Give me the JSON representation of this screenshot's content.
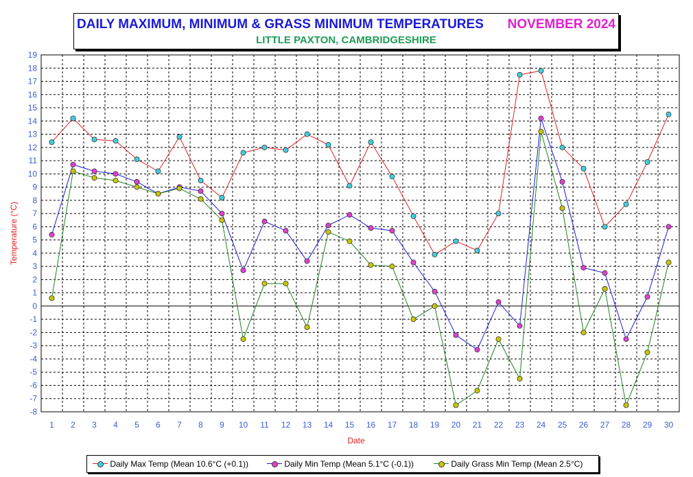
{
  "header": {
    "title": "DAILY MAXIMUM, MINIMUM & GRASS MINIMUM TEMPERATURES",
    "month": "NOVEMBER 2024",
    "subtitle": "LITTLE PAXTON, CAMBRIDGESHIRE"
  },
  "colors": {
    "title": "#1a1ad6",
    "month": "#e020d0",
    "subtitle": "#1f9d57",
    "tick_label": "#3b5bdb",
    "axis_label": "#e02020",
    "grid": "#000000"
  },
  "chart_data": {
    "type": "line",
    "title": "DAILY MAXIMUM, MINIMUM & GRASS MINIMUM TEMPERATURES",
    "xlabel": "Date",
    "ylabel": "Temperature (°C)",
    "ylim": [
      -8,
      19
    ],
    "grid": true,
    "legend_position": "bottom",
    "x": [
      1,
      2,
      3,
      4,
      5,
      6,
      7,
      8,
      9,
      10,
      11,
      12,
      13,
      14,
      15,
      16,
      17,
      18,
      19,
      20,
      21,
      22,
      23,
      24,
      25,
      26,
      27,
      28,
      29,
      30
    ],
    "y_ticks": [
      -8,
      -7,
      -6,
      -5,
      -4,
      -3,
      -2,
      -1,
      0,
      1,
      2,
      3,
      4,
      5,
      6,
      7,
      8,
      9,
      10,
      11,
      12,
      13,
      14,
      15,
      16,
      17,
      18,
      19
    ],
    "series": [
      {
        "name": "Daily Max Temp (Mean 10.6°C (+0.1))",
        "line_color": "#e02020",
        "marker_color": "#40d0e0",
        "values": [
          12.4,
          14.2,
          12.6,
          12.5,
          11.1,
          10.2,
          12.8,
          9.5,
          8.2,
          11.6,
          12.0,
          11.8,
          13.0,
          12.2,
          9.1,
          12.4,
          9.8,
          6.8,
          3.9,
          4.9,
          4.2,
          7.0,
          17.5,
          17.8,
          12.0,
          10.4,
          6.0,
          7.7,
          10.9,
          14.5
        ]
      },
      {
        "name": "Daily Min Temp (Mean 5.1°C (-0.1))",
        "line_color": "#1a1ad6",
        "marker_color": "#e040d0",
        "values": [
          5.4,
          10.7,
          10.2,
          10.0,
          9.4,
          8.5,
          9.0,
          8.7,
          7.0,
          2.7,
          6.4,
          5.7,
          3.4,
          6.1,
          6.9,
          5.9,
          5.7,
          3.3,
          1.1,
          -2.2,
          -3.3,
          0.3,
          -1.5,
          14.2,
          9.4,
          2.9,
          2.5,
          -2.5,
          0.7,
          6.0
        ]
      },
      {
        "name": "Daily Grass Min Temp (Mean 2.5°C)",
        "line_color": "#208020",
        "marker_color": "#c8c800",
        "values": [
          0.6,
          10.2,
          9.7,
          9.5,
          9.0,
          8.5,
          8.9,
          8.1,
          6.5,
          -2.5,
          1.7,
          1.7,
          -1.6,
          5.6,
          4.9,
          3.1,
          3.0,
          -1.0,
          0.0,
          -7.5,
          -6.4,
          -2.5,
          -5.5,
          13.2,
          7.4,
          -2.0,
          1.3,
          -7.5,
          -3.5,
          3.3
        ]
      }
    ]
  }
}
